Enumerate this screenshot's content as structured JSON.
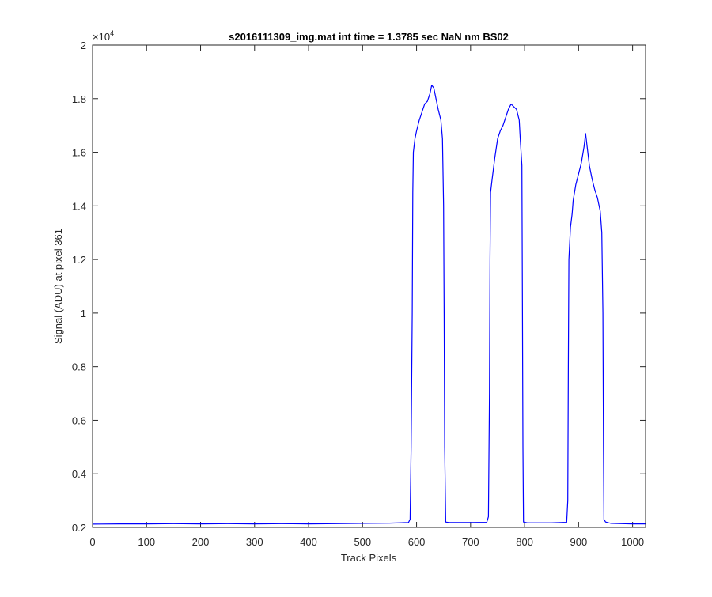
{
  "chart_data": {
    "type": "line",
    "title": "s2016111309_img.mat int time = 1.3785 sec  NaN nm BS02",
    "xlabel": "Track Pixels",
    "ylabel": "Signal (ADU) at pixel 361",
    "y_exponent_label": "×10",
    "y_exponent_power": "4",
    "xlim": [
      0,
      1024
    ],
    "ylim": [
      0.2,
      2.0
    ],
    "y_scale_factor": 10000,
    "x_ticks": [
      "0",
      "100",
      "200",
      "300",
      "400",
      "500",
      "600",
      "700",
      "800",
      "900",
      "1000"
    ],
    "y_ticks": [
      "0.2",
      "0.4",
      "0.6",
      "0.8",
      "1",
      "1.2",
      "1.4",
      "1.6",
      "1.8",
      "2"
    ],
    "grid": false,
    "line_color": "#0000ff",
    "series": [
      {
        "points": [
          [
            0,
            0.212
          ],
          [
            50,
            0.213
          ],
          [
            100,
            0.213
          ],
          [
            150,
            0.214
          ],
          [
            200,
            0.213
          ],
          [
            250,
            0.214
          ],
          [
            300,
            0.213
          ],
          [
            350,
            0.214
          ],
          [
            400,
            0.213
          ],
          [
            450,
            0.214
          ],
          [
            500,
            0.215
          ],
          [
            550,
            0.216
          ],
          [
            585,
            0.218
          ],
          [
            588,
            0.23
          ],
          [
            590,
            0.5
          ],
          [
            592,
            1.0
          ],
          [
            593,
            1.45
          ],
          [
            594,
            1.6
          ],
          [
            597,
            1.65
          ],
          [
            600,
            1.68
          ],
          [
            605,
            1.72
          ],
          [
            610,
            1.75
          ],
          [
            615,
            1.78
          ],
          [
            620,
            1.79
          ],
          [
            625,
            1.82
          ],
          [
            628,
            1.85
          ],
          [
            632,
            1.84
          ],
          [
            636,
            1.8
          ],
          [
            640,
            1.76
          ],
          [
            645,
            1.72
          ],
          [
            648,
            1.65
          ],
          [
            650,
            1.4
          ],
          [
            651,
            1.0
          ],
          [
            652,
            0.5
          ],
          [
            654,
            0.22
          ],
          [
            660,
            0.218
          ],
          [
            700,
            0.218
          ],
          [
            730,
            0.219
          ],
          [
            733,
            0.24
          ],
          [
            735,
            0.7
          ],
          [
            736,
            1.2
          ],
          [
            737,
            1.45
          ],
          [
            740,
            1.5
          ],
          [
            745,
            1.58
          ],
          [
            750,
            1.65
          ],
          [
            755,
            1.68
          ],
          [
            760,
            1.7
          ],
          [
            765,
            1.73
          ],
          [
            770,
            1.76
          ],
          [
            775,
            1.78
          ],
          [
            780,
            1.77
          ],
          [
            785,
            1.76
          ],
          [
            790,
            1.72
          ],
          [
            792,
            1.65
          ],
          [
            795,
            1.55
          ],
          [
            796,
            1.0
          ],
          [
            797,
            0.5
          ],
          [
            798,
            0.22
          ],
          [
            805,
            0.217
          ],
          [
            850,
            0.217
          ],
          [
            878,
            0.219
          ],
          [
            880,
            0.3
          ],
          [
            881,
            0.8
          ],
          [
            882,
            1.2
          ],
          [
            885,
            1.32
          ],
          [
            888,
            1.37
          ],
          [
            890,
            1.42
          ],
          [
            895,
            1.48
          ],
          [
            900,
            1.52
          ],
          [
            905,
            1.56
          ],
          [
            910,
            1.62
          ],
          [
            913,
            1.67
          ],
          [
            917,
            1.6
          ],
          [
            920,
            1.55
          ],
          [
            925,
            1.5
          ],
          [
            930,
            1.46
          ],
          [
            935,
            1.43
          ],
          [
            940,
            1.38
          ],
          [
            943,
            1.3
          ],
          [
            945,
            1.0
          ],
          [
            946,
            0.5
          ],
          [
            947,
            0.23
          ],
          [
            950,
            0.22
          ],
          [
            960,
            0.215
          ],
          [
            1000,
            0.213
          ],
          [
            1024,
            0.213
          ]
        ]
      }
    ]
  }
}
